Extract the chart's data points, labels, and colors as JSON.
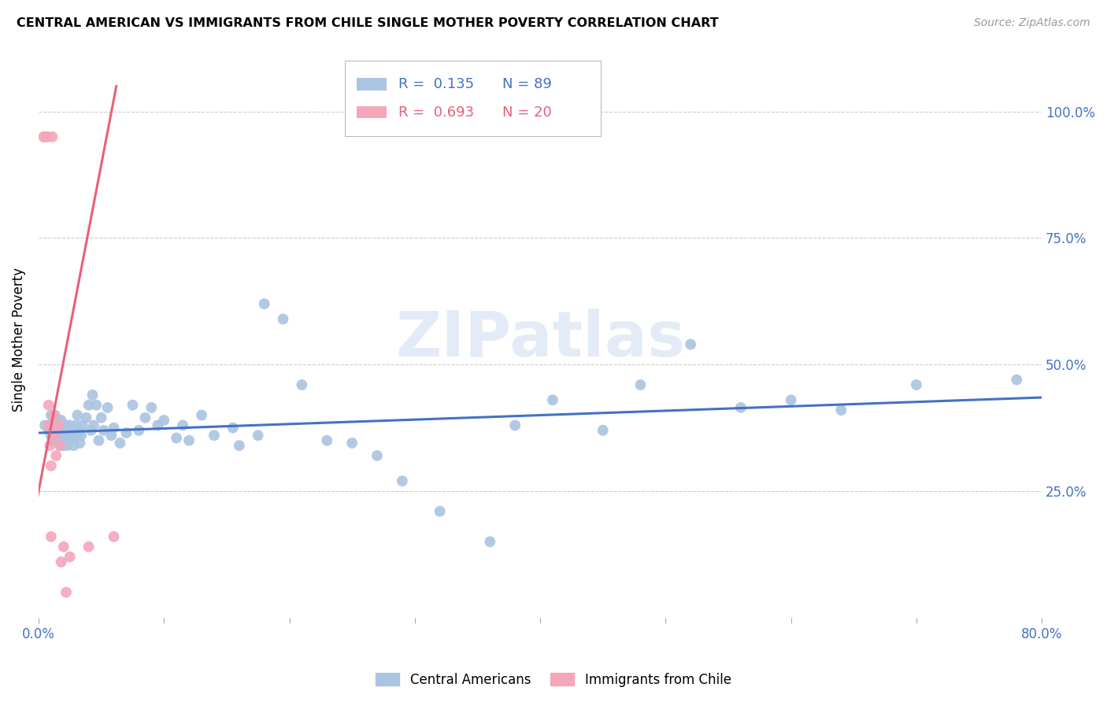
{
  "title": "CENTRAL AMERICAN VS IMMIGRANTS FROM CHILE SINGLE MOTHER POVERTY CORRELATION CHART",
  "source": "Source: ZipAtlas.com",
  "ylabel": "Single Mother Poverty",
  "xlim": [
    0.0,
    0.8
  ],
  "ylim": [
    0.0,
    1.1
  ],
  "x_ticks": [
    0.0,
    0.1,
    0.2,
    0.3,
    0.4,
    0.5,
    0.6,
    0.7,
    0.8
  ],
  "x_tick_labels": [
    "0.0%",
    "",
    "",
    "",
    "",
    "",
    "",
    "",
    "80.0%"
  ],
  "y_ticks": [
    0.0,
    0.25,
    0.5,
    0.75,
    1.0
  ],
  "y_tick_labels": [
    "",
    "25.0%",
    "50.0%",
    "75.0%",
    "100.0%"
  ],
  "legend1_R": "0.135",
  "legend1_N": "89",
  "legend2_R": "0.693",
  "legend2_N": "20",
  "blue_color": "#aac4e2",
  "blue_line_color": "#4472c4",
  "pink_color": "#f4a7bb",
  "pink_line_color": "#e8607a",
  "watermark": "ZIPatlas",
  "blue_scatter_x": [
    0.005,
    0.008,
    0.01,
    0.01,
    0.01,
    0.012,
    0.012,
    0.013,
    0.013,
    0.015,
    0.015,
    0.015,
    0.016,
    0.016,
    0.017,
    0.017,
    0.017,
    0.018,
    0.018,
    0.018,
    0.019,
    0.02,
    0.02,
    0.021,
    0.022,
    0.022,
    0.023,
    0.023,
    0.024,
    0.025,
    0.025,
    0.025,
    0.026,
    0.027,
    0.028,
    0.03,
    0.03,
    0.031,
    0.032,
    0.033,
    0.034,
    0.035,
    0.038,
    0.04,
    0.042,
    0.043,
    0.044,
    0.046,
    0.048,
    0.05,
    0.052,
    0.055,
    0.058,
    0.06,
    0.065,
    0.07,
    0.075,
    0.08,
    0.085,
    0.09,
    0.095,
    0.1,
    0.11,
    0.115,
    0.12,
    0.13,
    0.14,
    0.155,
    0.16,
    0.175,
    0.18,
    0.195,
    0.21,
    0.23,
    0.25,
    0.27,
    0.29,
    0.32,
    0.36,
    0.38,
    0.41,
    0.45,
    0.48,
    0.52,
    0.56,
    0.6,
    0.64,
    0.7,
    0.78
  ],
  "blue_scatter_y": [
    0.38,
    0.37,
    0.36,
    0.38,
    0.4,
    0.35,
    0.37,
    0.38,
    0.4,
    0.36,
    0.375,
    0.39,
    0.345,
    0.365,
    0.35,
    0.365,
    0.38,
    0.34,
    0.36,
    0.39,
    0.355,
    0.34,
    0.36,
    0.38,
    0.355,
    0.375,
    0.34,
    0.36,
    0.37,
    0.35,
    0.365,
    0.38,
    0.355,
    0.37,
    0.34,
    0.36,
    0.38,
    0.4,
    0.365,
    0.345,
    0.36,
    0.38,
    0.395,
    0.42,
    0.37,
    0.44,
    0.38,
    0.42,
    0.35,
    0.395,
    0.37,
    0.415,
    0.36,
    0.375,
    0.345,
    0.365,
    0.42,
    0.37,
    0.395,
    0.415,
    0.38,
    0.39,
    0.355,
    0.38,
    0.35,
    0.4,
    0.36,
    0.375,
    0.34,
    0.36,
    0.62,
    0.59,
    0.46,
    0.35,
    0.345,
    0.32,
    0.27,
    0.21,
    0.15,
    0.38,
    0.43,
    0.37,
    0.46,
    0.54,
    0.415,
    0.43,
    0.41,
    0.46,
    0.47
  ],
  "pink_scatter_x": [
    0.004,
    0.006,
    0.007,
    0.008,
    0.008,
    0.009,
    0.01,
    0.01,
    0.011,
    0.012,
    0.013,
    0.014,
    0.016,
    0.017,
    0.018,
    0.02,
    0.022,
    0.025,
    0.04,
    0.06
  ],
  "pink_scatter_y": [
    0.95,
    0.95,
    0.95,
    0.42,
    0.38,
    0.34,
    0.3,
    0.16,
    0.95,
    0.4,
    0.36,
    0.32,
    0.38,
    0.34,
    0.11,
    0.14,
    0.05,
    0.12,
    0.14,
    0.16
  ],
  "blue_trend_x": [
    0.0,
    0.8
  ],
  "blue_trend_y": [
    0.365,
    0.435
  ],
  "pink_trend_x": [
    -0.005,
    0.062
  ],
  "pink_trend_y": [
    0.185,
    1.05
  ]
}
